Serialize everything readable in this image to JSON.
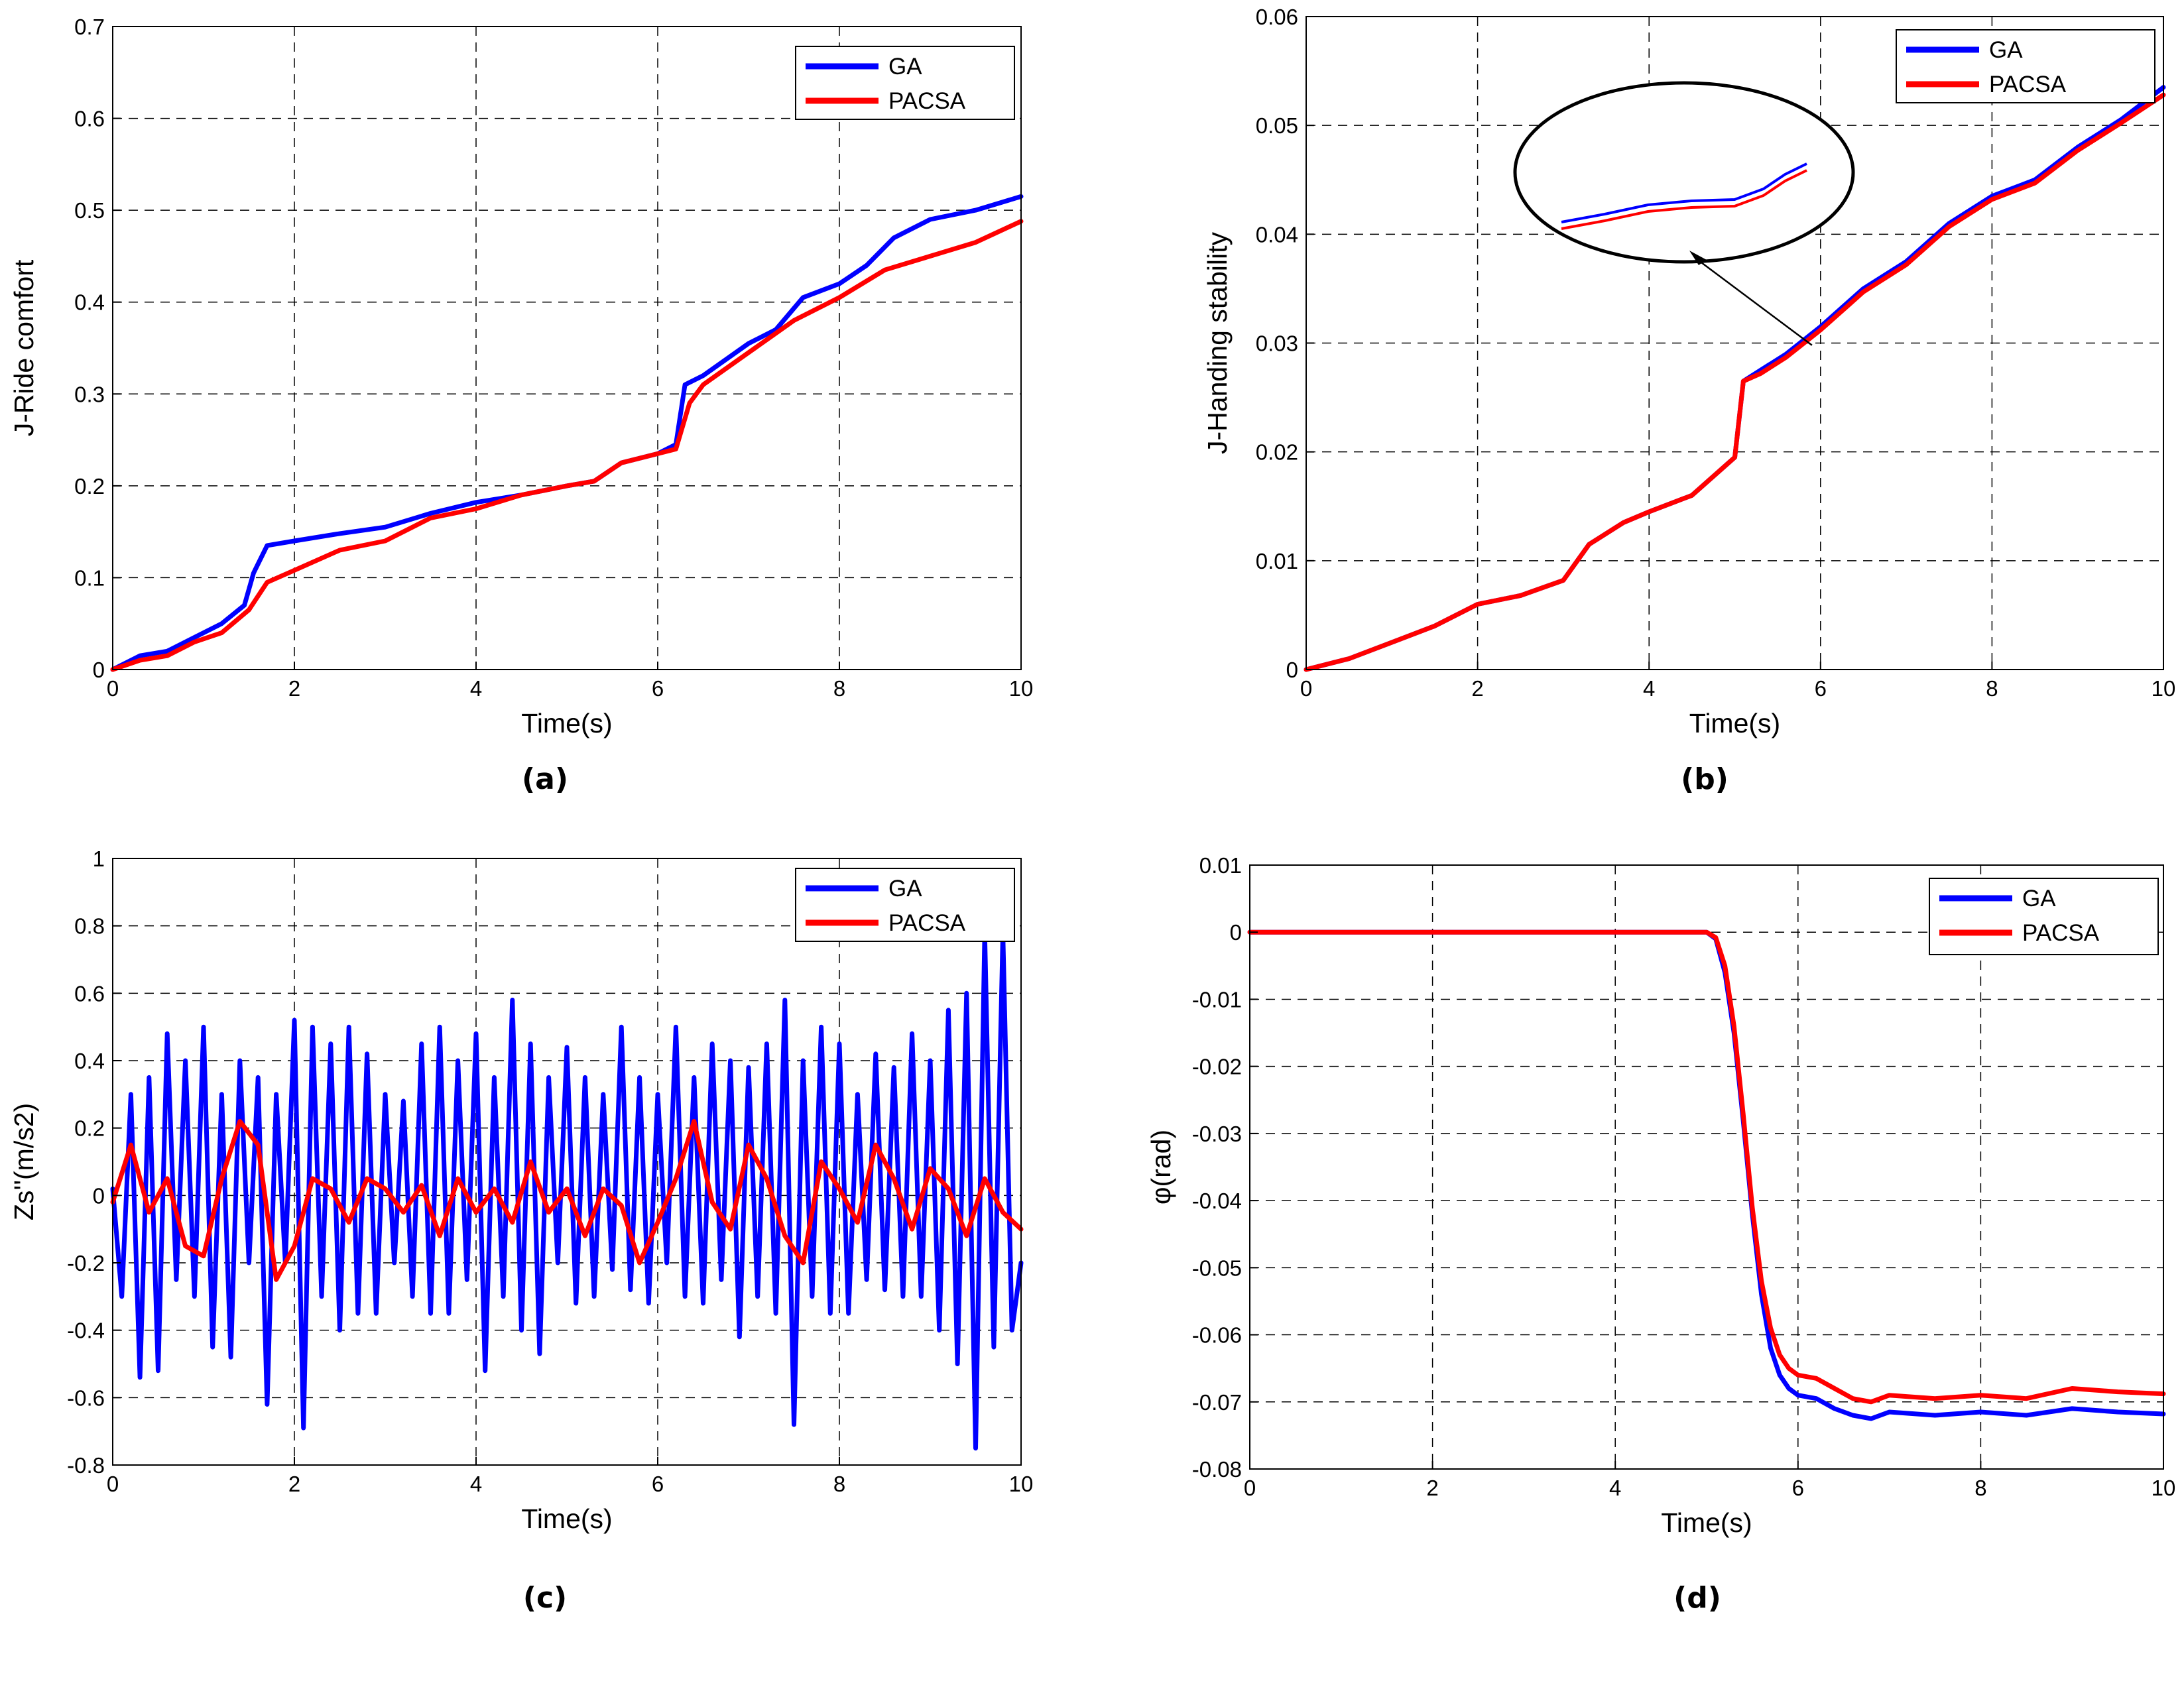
{
  "figure": {
    "panels": [
      {
        "caption": "(a)"
      },
      {
        "caption": "(b)"
      },
      {
        "caption": "(c)"
      },
      {
        "caption": "(d)"
      }
    ]
  },
  "chart_data": [
    {
      "type": "line",
      "caption": "(a)",
      "xlabel": "Time(s)",
      "ylabel": "J-Ride comfort",
      "xlim": [
        0,
        10
      ],
      "ylim": [
        0,
        0.7
      ],
      "xticks": [
        0,
        2,
        4,
        6,
        8,
        10
      ],
      "yticks": [
        0,
        0.1,
        0.2,
        0.3,
        0.4,
        0.5,
        0.6,
        0.7
      ],
      "grid": true,
      "legend": "top-right",
      "series": [
        {
          "name": "GA",
          "color": "#0000ff",
          "x": [
            0,
            0.3,
            0.6,
            0.9,
            1.2,
            1.45,
            1.55,
            1.7,
            2.0,
            2.5,
            3.0,
            3.5,
            4.0,
            4.5,
            5.0,
            5.3,
            5.6,
            6.0,
            6.2,
            6.3,
            6.5,
            7.0,
            7.3,
            7.6,
            8.0,
            8.3,
            8.6,
            9.0,
            9.5,
            10.0
          ],
          "y": [
            0,
            0.015,
            0.02,
            0.035,
            0.05,
            0.07,
            0.105,
            0.135,
            0.14,
            0.148,
            0.155,
            0.17,
            0.182,
            0.19,
            0.2,
            0.205,
            0.225,
            0.235,
            0.245,
            0.31,
            0.32,
            0.355,
            0.37,
            0.405,
            0.42,
            0.44,
            0.47,
            0.49,
            0.5,
            0.515
          ]
        },
        {
          "name": "PACSA",
          "color": "#ff0000",
          "x": [
            0,
            0.3,
            0.6,
            0.9,
            1.2,
            1.5,
            1.7,
            2.0,
            2.5,
            3.0,
            3.5,
            4.0,
            4.5,
            5.0,
            5.3,
            5.6,
            6.0,
            6.2,
            6.35,
            6.5,
            7.0,
            7.5,
            8.0,
            8.5,
            9.0,
            9.5,
            10.0
          ],
          "y": [
            0,
            0.01,
            0.015,
            0.03,
            0.04,
            0.065,
            0.095,
            0.108,
            0.13,
            0.14,
            0.165,
            0.175,
            0.19,
            0.2,
            0.205,
            0.225,
            0.235,
            0.24,
            0.29,
            0.31,
            0.345,
            0.38,
            0.405,
            0.435,
            0.45,
            0.465,
            0.488
          ]
        }
      ]
    },
    {
      "type": "line",
      "caption": "(b)",
      "xlabel": "Time(s)",
      "ylabel": "J-Handing stability",
      "xlim": [
        0,
        10
      ],
      "ylim": [
        0,
        0.06
      ],
      "xticks": [
        0,
        2,
        4,
        6,
        8,
        10
      ],
      "yticks": [
        0,
        0.01,
        0.02,
        0.03,
        0.04,
        0.05,
        0.06
      ],
      "grid": true,
      "legend": "top-right",
      "series": [
        {
          "name": "GA",
          "color": "#0000ff",
          "x": [
            0,
            0.5,
            1.0,
            1.5,
            2.0,
            2.5,
            3.0,
            3.3,
            3.7,
            4.0,
            4.5,
            5.0,
            5.1,
            5.3,
            5.6,
            6.0,
            6.5,
            7.0,
            7.5,
            8.0,
            8.5,
            9.0,
            9.5,
            10.0
          ],
          "y": [
            0,
            0.001,
            0.0025,
            0.004,
            0.006,
            0.0068,
            0.0082,
            0.0115,
            0.0135,
            0.0145,
            0.016,
            0.0195,
            0.0265,
            0.0275,
            0.029,
            0.0315,
            0.035,
            0.0375,
            0.041,
            0.0435,
            0.045,
            0.048,
            0.0505,
            0.0535
          ]
        },
        {
          "name": "PACSA",
          "color": "#ff0000",
          "x": [
            0,
            0.5,
            1.0,
            1.5,
            2.0,
            2.5,
            3.0,
            3.3,
            3.7,
            4.0,
            4.5,
            5.0,
            5.1,
            5.3,
            5.6,
            6.0,
            6.5,
            7.0,
            7.5,
            8.0,
            8.5,
            9.0,
            9.5,
            10.0
          ],
          "y": [
            0,
            0.001,
            0.0025,
            0.004,
            0.006,
            0.0068,
            0.0082,
            0.0115,
            0.0135,
            0.0145,
            0.016,
            0.0195,
            0.0265,
            0.0272,
            0.0287,
            0.0312,
            0.0347,
            0.0372,
            0.0407,
            0.0432,
            0.0447,
            0.0477,
            0.0502,
            0.0528
          ]
        }
      ]
    },
    {
      "type": "line",
      "caption": "(c)",
      "xlabel": "Time(s)",
      "ylabel": "Zs''(m/s2)",
      "xlim": [
        0,
        10
      ],
      "ylim": [
        -0.8,
        1
      ],
      "xticks": [
        0,
        2,
        4,
        6,
        8,
        10
      ],
      "yticks": [
        -0.8,
        -0.6,
        -0.4,
        -0.2,
        0,
        0.2,
        0.4,
        0.6,
        0.8,
        1
      ],
      "grid": true,
      "legend": "top-right",
      "series": [
        {
          "name": "GA",
          "color": "#0000ff",
          "x": [
            0.0,
            0.1,
            0.2,
            0.3,
            0.4,
            0.5,
            0.6,
            0.7,
            0.8,
            0.9,
            1.0,
            1.1,
            1.2,
            1.3,
            1.4,
            1.5,
            1.6,
            1.7,
            1.8,
            1.9,
            2.0,
            2.1,
            2.2,
            2.3,
            2.4,
            2.5,
            2.6,
            2.7,
            2.8,
            2.9,
            3.0,
            3.1,
            3.2,
            3.3,
            3.4,
            3.5,
            3.6,
            3.7,
            3.8,
            3.9,
            4.0,
            4.1,
            4.2,
            4.3,
            4.4,
            4.5,
            4.6,
            4.7,
            4.8,
            4.9,
            5.0,
            5.1,
            5.2,
            5.3,
            5.4,
            5.5,
            5.6,
            5.7,
            5.8,
            5.9,
            6.0,
            6.1,
            6.2,
            6.3,
            6.4,
            6.5,
            6.6,
            6.7,
            6.8,
            6.9,
            7.0,
            7.1,
            7.2,
            7.3,
            7.4,
            7.5,
            7.6,
            7.7,
            7.8,
            7.9,
            8.0,
            8.1,
            8.2,
            8.3,
            8.4,
            8.5,
            8.6,
            8.7,
            8.8,
            8.9,
            9.0,
            9.1,
            9.2,
            9.3,
            9.4,
            9.5,
            9.6,
            9.7,
            9.8,
            9.9,
            10.0
          ],
          "y": [
            0.02,
            -0.3,
            0.3,
            -0.54,
            0.35,
            -0.52,
            0.48,
            -0.25,
            0.4,
            -0.3,
            0.5,
            -0.45,
            0.3,
            -0.48,
            0.4,
            -0.2,
            0.35,
            -0.62,
            0.3,
            -0.2,
            0.52,
            -0.69,
            0.5,
            -0.3,
            0.45,
            -0.4,
            0.5,
            -0.35,
            0.42,
            -0.35,
            0.3,
            -0.2,
            0.28,
            -0.3,
            0.45,
            -0.35,
            0.5,
            -0.35,
            0.4,
            -0.25,
            0.48,
            -0.52,
            0.35,
            -0.3,
            0.58,
            -0.4,
            0.45,
            -0.47,
            0.35,
            -0.2,
            0.44,
            -0.32,
            0.35,
            -0.3,
            0.3,
            -0.22,
            0.5,
            -0.28,
            0.35,
            -0.32,
            0.3,
            -0.2,
            0.5,
            -0.3,
            0.35,
            -0.32,
            0.45,
            -0.25,
            0.4,
            -0.42,
            0.38,
            -0.3,
            0.45,
            -0.35,
            0.58,
            -0.68,
            0.4,
            -0.3,
            0.5,
            -0.35,
            0.45,
            -0.35,
            0.3,
            -0.25,
            0.42,
            -0.28,
            0.38,
            -0.3,
            0.48,
            -0.3,
            0.4,
            -0.4,
            0.55,
            -0.5,
            0.6,
            -0.75,
            0.78,
            -0.45,
            0.78,
            -0.4,
            -0.2
          ]
        },
        {
          "name": "PACSA",
          "color": "#ff0000",
          "x": [
            0.0,
            0.2,
            0.4,
            0.6,
            0.8,
            1.0,
            1.2,
            1.4,
            1.6,
            1.8,
            2.0,
            2.2,
            2.4,
            2.6,
            2.8,
            3.0,
            3.2,
            3.4,
            3.6,
            3.8,
            4.0,
            4.2,
            4.4,
            4.6,
            4.8,
            5.0,
            5.2,
            5.4,
            5.6,
            5.8,
            6.0,
            6.2,
            6.4,
            6.6,
            6.8,
            7.0,
            7.2,
            7.4,
            7.6,
            7.8,
            8.0,
            8.2,
            8.4,
            8.6,
            8.8,
            9.0,
            9.2,
            9.4,
            9.6,
            9.8,
            10.0
          ],
          "y": [
            -0.02,
            0.15,
            -0.05,
            0.05,
            -0.15,
            -0.18,
            0.05,
            0.22,
            0.15,
            -0.25,
            -0.15,
            0.05,
            0.02,
            -0.08,
            0.05,
            0.02,
            -0.05,
            0.03,
            -0.12,
            0.05,
            -0.05,
            0.02,
            -0.08,
            0.1,
            -0.05,
            0.02,
            -0.12,
            0.02,
            -0.03,
            -0.2,
            -0.08,
            0.05,
            0.22,
            -0.02,
            -0.1,
            0.15,
            0.05,
            -0.12,
            -0.2,
            0.1,
            0.02,
            -0.08,
            0.15,
            0.05,
            -0.1,
            0.08,
            0.02,
            -0.12,
            0.05,
            -0.05,
            -0.1
          ]
        }
      ]
    },
    {
      "type": "line",
      "caption": "(d)",
      "xlabel": "Time(s)",
      "ylabel": "φ(rad)",
      "xlim": [
        0,
        10
      ],
      "ylim": [
        -0.08,
        0.01
      ],
      "xticks": [
        0,
        2,
        4,
        6,
        8,
        10
      ],
      "yticks": [
        -0.08,
        -0.07,
        -0.06,
        -0.05,
        -0.04,
        -0.03,
        -0.02,
        -0.01,
        0,
        0.01
      ],
      "grid": true,
      "legend": "top-right",
      "series": [
        {
          "name": "GA",
          "color": "#0000ff",
          "x": [
            0,
            1,
            2,
            3,
            4,
            5.0,
            5.1,
            5.2,
            5.3,
            5.4,
            5.5,
            5.6,
            5.7,
            5.8,
            5.9,
            6.0,
            6.2,
            6.4,
            6.6,
            6.8,
            7.0,
            7.5,
            8.0,
            8.5,
            9.0,
            9.5,
            10.0
          ],
          "y": [
            0,
            0,
            0,
            0,
            0,
            0,
            -0.001,
            -0.006,
            -0.015,
            -0.028,
            -0.042,
            -0.054,
            -0.062,
            -0.066,
            -0.068,
            -0.069,
            -0.0695,
            -0.071,
            -0.072,
            -0.0725,
            -0.0715,
            -0.072,
            -0.0715,
            -0.072,
            -0.071,
            -0.0715,
            -0.0718
          ]
        },
        {
          "name": "PACSA",
          "color": "#ff0000",
          "x": [
            0,
            1,
            2,
            3,
            4,
            5.0,
            5.1,
            5.2,
            5.3,
            5.4,
            5.5,
            5.6,
            5.7,
            5.8,
            5.9,
            6.0,
            6.2,
            6.4,
            6.6,
            6.8,
            7.0,
            7.5,
            8.0,
            8.5,
            9.0,
            9.5,
            10.0
          ],
          "y": [
            0,
            0,
            0,
            0,
            0,
            0,
            -0.0008,
            -0.005,
            -0.014,
            -0.027,
            -0.041,
            -0.052,
            -0.059,
            -0.063,
            -0.065,
            -0.066,
            -0.0665,
            -0.068,
            -0.0695,
            -0.07,
            -0.069,
            -0.0695,
            -0.069,
            -0.0695,
            -0.068,
            -0.0685,
            -0.0688
          ]
        }
      ]
    }
  ]
}
